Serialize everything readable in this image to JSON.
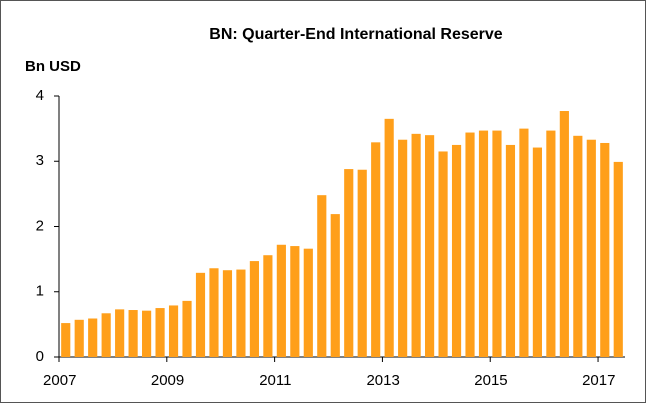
{
  "chart_data": {
    "type": "bar",
    "title": "BN: Quarter-End International Reserve",
    "y_label": "Bn USD",
    "categories": [
      "2007",
      null,
      null,
      null,
      null,
      null,
      null,
      null,
      "2009",
      null,
      null,
      null,
      null,
      null,
      null,
      null,
      "2011",
      null,
      null,
      null,
      null,
      null,
      null,
      null,
      "2013",
      null,
      null,
      null,
      null,
      null,
      null,
      null,
      "2015",
      null,
      null,
      null,
      null,
      null,
      null,
      null,
      "2017",
      null
    ],
    "values": [
      0.52,
      0.57,
      0.59,
      0.67,
      0.73,
      0.72,
      0.71,
      0.75,
      0.79,
      0.86,
      1.29,
      1.36,
      1.33,
      1.34,
      1.47,
      1.56,
      1.72,
      1.7,
      1.66,
      2.48,
      2.19,
      2.88,
      2.87,
      3.29,
      3.65,
      3.33,
      3.42,
      3.4,
      3.15,
      3.25,
      3.44,
      3.47,
      3.47,
      3.25,
      3.5,
      3.21,
      3.47,
      3.77,
      3.39,
      3.33,
      3.28,
      2.99
    ],
    "color": "#ff9f1a",
    "ylim": [
      0,
      4
    ],
    "yticks": [
      0,
      1,
      2,
      3,
      4
    ],
    "grid": false
  }
}
